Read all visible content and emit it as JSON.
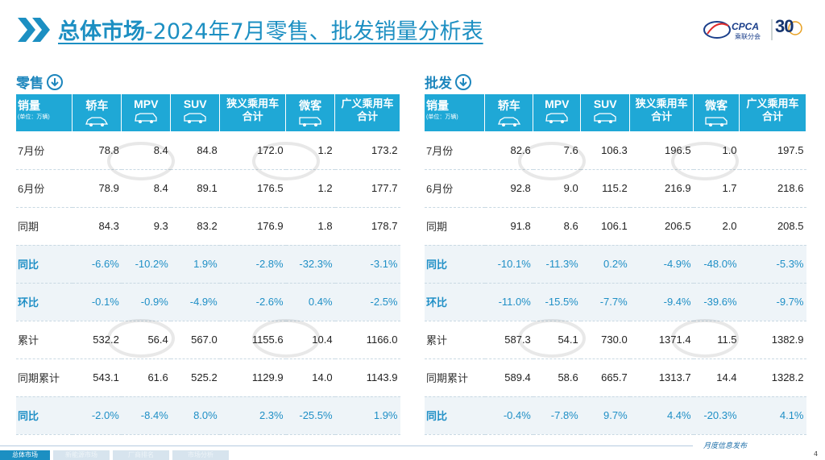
{
  "header": {
    "title_bold": "总体市场",
    "title_rest": "-2024年7月零售、批发销量分析表",
    "logo_text": "CPCA",
    "logo_sub": "乘联分会",
    "logo_anniversary": "30"
  },
  "retail": {
    "section_label": "零售",
    "columns": {
      "first": "销量",
      "unit": "(单位：万辆)",
      "sedan": "轿车",
      "mpv": "MPV",
      "suv": "SUV",
      "narrow_1": "狭义乘用车",
      "narrow_2": "合计",
      "mini": "微客",
      "broad_1": "广义乘用车",
      "broad_2": "合计"
    },
    "rows": [
      {
        "label": "7月份",
        "v": [
          "78.8",
          "8.4",
          "84.8",
          "172.0",
          "1.2",
          "173.2"
        ]
      },
      {
        "label": "6月份",
        "v": [
          "78.9",
          "8.4",
          "89.1",
          "176.5",
          "1.2",
          "177.7"
        ]
      },
      {
        "label": "同期",
        "v": [
          "84.3",
          "9.3",
          "83.2",
          "176.9",
          "1.8",
          "178.7"
        ]
      },
      {
        "label": "同比",
        "v": [
          "-6.6%",
          "-10.2%",
          "1.9%",
          "-2.8%",
          "-32.3%",
          "-3.1%"
        ]
      },
      {
        "label": "环比",
        "v": [
          "-0.1%",
          "-0.9%",
          "-4.9%",
          "-2.6%",
          "0.4%",
          "-2.5%"
        ]
      },
      {
        "label": "累计",
        "v": [
          "532.2",
          "56.4",
          "567.0",
          "1155.6",
          "10.4",
          "1166.0"
        ]
      },
      {
        "label": "同期累计",
        "v": [
          "543.1",
          "61.6",
          "525.2",
          "1129.9",
          "14.0",
          "1143.9"
        ]
      },
      {
        "label": "同比",
        "v": [
          "-2.0%",
          "-8.4%",
          "8.0%",
          "2.3%",
          "-25.5%",
          "1.9%"
        ]
      }
    ]
  },
  "wholesale": {
    "section_label": "批发",
    "columns": {
      "first": "销量",
      "unit": "(单位：万辆)",
      "sedan": "轿车",
      "mpv": "MPV",
      "suv": "SUV",
      "narrow_1": "狭义乘用车",
      "narrow_2": "合计",
      "mini": "微客",
      "broad_1": "广义乘用车",
      "broad_2": "合计"
    },
    "rows": [
      {
        "label": "7月份",
        "v": [
          "82.6",
          "7.6",
          "106.3",
          "196.5",
          "1.0",
          "197.5"
        ]
      },
      {
        "label": "6月份",
        "v": [
          "92.8",
          "9.0",
          "115.2",
          "216.9",
          "1.7",
          "218.6"
        ]
      },
      {
        "label": "同期",
        "v": [
          "91.8",
          "8.6",
          "106.1",
          "206.5",
          "2.0",
          "208.5"
        ]
      },
      {
        "label": "同比",
        "v": [
          "-10.1%",
          "-11.3%",
          "0.2%",
          "-4.9%",
          "-48.0%",
          "-5.3%"
        ]
      },
      {
        "label": "环比",
        "v": [
          "-11.0%",
          "-15.5%",
          "-7.7%",
          "-9.4%",
          "-39.6%",
          "-9.7%"
        ]
      },
      {
        "label": "累计",
        "v": [
          "587.3",
          "54.1",
          "730.0",
          "1371.4",
          "11.5",
          "1382.9"
        ]
      },
      {
        "label": "同期累计",
        "v": [
          "589.4",
          "58.6",
          "665.7",
          "1313.7",
          "14.4",
          "1328.2"
        ]
      },
      {
        "label": "同比",
        "v": [
          "-0.4%",
          "-7.8%",
          "9.7%",
          "4.4%",
          "-20.3%",
          "4.1%"
        ]
      }
    ]
  },
  "footer": {
    "tabs": [
      "总体市场",
      "新能源市场",
      "厂商排名",
      "市场分析"
    ],
    "publisher": "月度信息发布",
    "page_number": "4"
  },
  "colors": {
    "brand_blue": "#1c8fc2",
    "header_bg": "#1fa8d6",
    "percent_text": "#1f8fc6"
  }
}
